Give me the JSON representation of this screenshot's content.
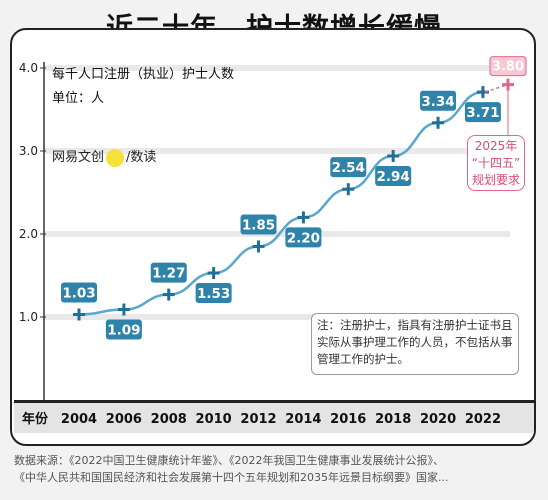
{
  "title": "近二十年，护士数增长缓慢",
  "chart_data": {
    "type": "line",
    "title": "每千人口注册（执业）护士人数",
    "unit": "单位：人",
    "xlabel": "年份",
    "ylabel": "",
    "x": [
      2004,
      2006,
      2008,
      2010,
      2012,
      2014,
      2016,
      2018,
      2020,
      2022
    ],
    "x_tick_labels": [
      "2004",
      "2006",
      "2008",
      "2010",
      "2012",
      "2014",
      "2016",
      "2018",
      "2020",
      "2022"
    ],
    "y_ticks": [
      "1.0",
      "2.0",
      "3.0",
      "4.0"
    ],
    "ylim": [
      0,
      4.0
    ],
    "series": [
      {
        "values": [
          1.03,
          1.09,
          1.27,
          1.53,
          1.85,
          2.2,
          2.54,
          2.94,
          3.34,
          3.71
        ],
        "labels": [
          "1.03",
          "1.09",
          "1.27",
          "1.53",
          "1.85",
          "2.20",
          "2.54",
          "2.94",
          "3.34",
          "3.71"
        ],
        "color": "#2f8fb8"
      }
    ],
    "target": {
      "year": 2025,
      "value": 3.8,
      "label": "3.80",
      "color": "#e3678a"
    },
    "grid": true
  },
  "watermark": {
    "left": "网易文创",
    "logo": "NetEase",
    "right": "/数读"
  },
  "note": "注：注册护士，指具有注册护士证书且实际从事护理工作的人员，不包括从事管理工作的护士。",
  "target_box": [
    "2025年",
    "“十四五”",
    "规划要求"
  ],
  "source_lines": [
    "数据来源：《2022中国卫生健康统计年鉴》、《2022年我国卫生健康事业发展统计公报》、",
    "《中华人民共和国国民经济和社会发展第十四个五年规划和2035年远景目标纲要》国家..."
  ],
  "colors": {
    "line": "#5aa7cf",
    "label_bg": "#2f83ab",
    "target": "#e3678a"
  }
}
